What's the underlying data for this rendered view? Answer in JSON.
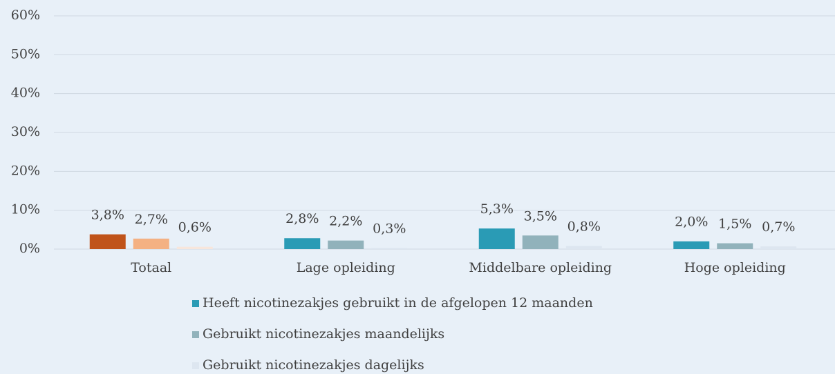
{
  "chart_data": {
    "type": "bar",
    "categories": [
      "Totaal",
      "Lage opleiding",
      "Middelbare opleiding",
      "Hoge opleiding"
    ],
    "series": [
      {
        "name": "Heeft nicotinezakjes gebruikt in de afgelopen 12 maanden",
        "color": "#2a9bb5",
        "colors": [
          "#c0531a",
          "#2a9bb5",
          "#2a9bb5",
          "#2a9bb5"
        ],
        "values": [
          3.8,
          2.8,
          5.3,
          2.0
        ],
        "value_labels": [
          "3,8%",
          "2,8%",
          "5,3%",
          "2,0%"
        ]
      },
      {
        "name": "Gebruikt nicotinezakjes maandelijks",
        "color": "#91b2bb",
        "colors": [
          "#f4b183",
          "#91b2bb",
          "#91b2bb",
          "#91b2bb"
        ],
        "values": [
          2.7,
          2.2,
          3.5,
          1.5
        ],
        "value_labels": [
          "2,7%",
          "2,2%",
          "3,5%",
          "1,5%"
        ]
      },
      {
        "name": "Gebruikt nicotinezakjes dagelijks",
        "color": "#dde6f0",
        "colors": [
          "#f7e6dc",
          "#dde6f0",
          "#dde6f0",
          "#dde6f0"
        ],
        "values": [
          0.6,
          0.3,
          0.8,
          0.7
        ],
        "value_labels": [
          "0,6%",
          "0,3%",
          "0,8%",
          "0,7%"
        ]
      }
    ],
    "ylim": [
      0,
      60
    ],
    "yticks": [
      {
        "value": 0,
        "label": "0%"
      },
      {
        "value": 10,
        "label": "10%"
      },
      {
        "value": 20,
        "label": "20%"
      },
      {
        "value": 30,
        "label": "30%"
      },
      {
        "value": 40,
        "label": "40%"
      },
      {
        "value": 50,
        "label": "50%"
      },
      {
        "value": 60,
        "label": "60%"
      }
    ],
    "grid": true,
    "legend": "bottom"
  }
}
